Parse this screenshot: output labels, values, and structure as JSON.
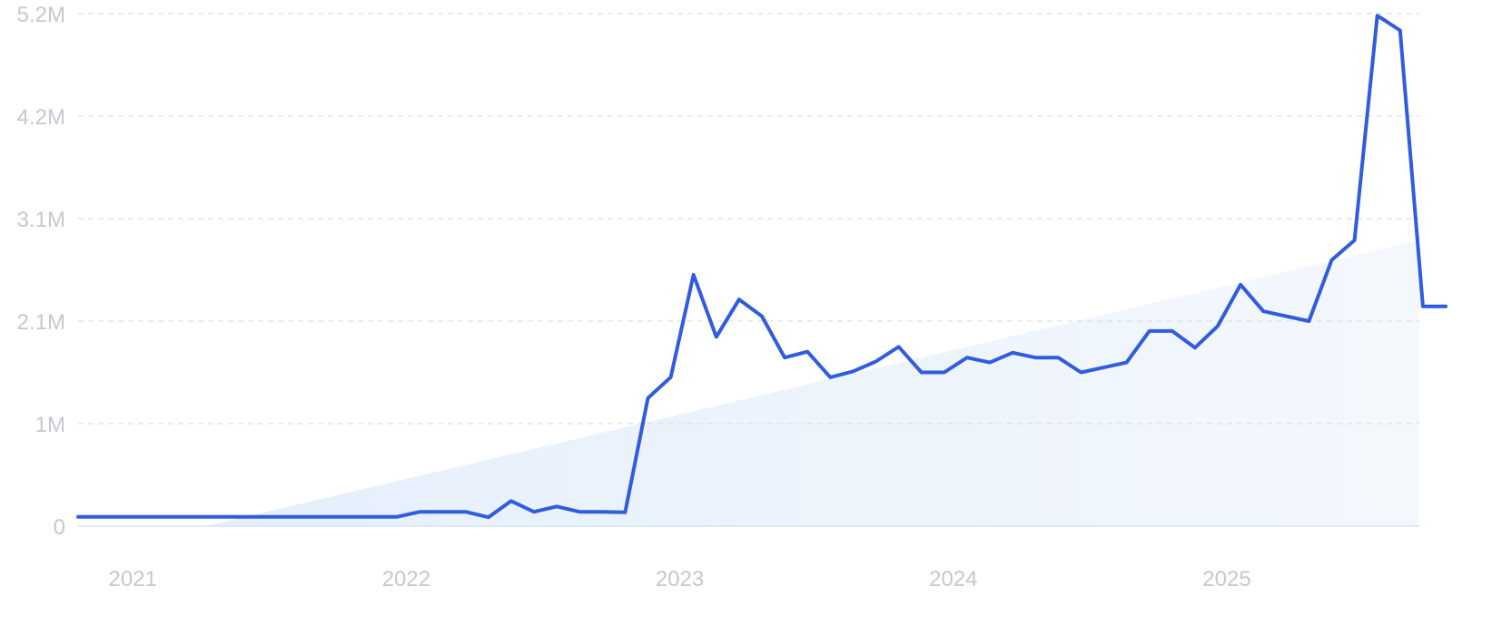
{
  "chart_data": {
    "type": "line",
    "title": "",
    "xlabel": "",
    "ylabel": "",
    "y_ticks": [
      "0",
      "1M",
      "2.1M",
      "3.1M",
      "4.2M",
      "5.2M"
    ],
    "y_tick_values": [
      0,
      1040000,
      2080000,
      3120000,
      4160000,
      5200000
    ],
    "ylim": [
      0,
      5200000
    ],
    "x_ticks": [
      "2021",
      "2022",
      "2023",
      "2024",
      "2025"
    ],
    "x_tick_dates": [
      "2021-01",
      "2022-01",
      "2023-01",
      "2024-01",
      "2025-01"
    ],
    "grid": true,
    "legend": "none",
    "colors": {
      "line": "#2f5ce0",
      "trend_fill": "#e8f1fb",
      "grid": "#dcdfe4",
      "tick_text": "#c4c8d0"
    },
    "series": [
      {
        "x": [
          "2020-11",
          "2020-12",
          "2021-01",
          "2021-02",
          "2021-03",
          "2021-04",
          "2021-05",
          "2021-06",
          "2021-07",
          "2021-08",
          "2021-09",
          "2021-10",
          "2021-11",
          "2021-12",
          "2022-01",
          "2022-02",
          "2022-03",
          "2022-04",
          "2022-05",
          "2022-06",
          "2022-07",
          "2022-08",
          "2022-09",
          "2022-10",
          "2022-11",
          "2022-12",
          "2023-01",
          "2023-02",
          "2023-03",
          "2023-04",
          "2023-05",
          "2023-06",
          "2023-07",
          "2023-08",
          "2023-09",
          "2023-10",
          "2023-11",
          "2023-12",
          "2024-01",
          "2024-02",
          "2024-03",
          "2024-04",
          "2024-05",
          "2024-06",
          "2024-07",
          "2024-08",
          "2024-09",
          "2024-10",
          "2024-11",
          "2024-12",
          "2025-01",
          "2025-02",
          "2025-03",
          "2025-04",
          "2025-05",
          "2025-06",
          "2025-07",
          "2025-08",
          "2025-09",
          "2025-10",
          "2025-11"
        ],
        "values": [
          95000,
          95000,
          95000,
          95000,
          95000,
          95000,
          95000,
          95000,
          95000,
          95000,
          95000,
          95000,
          95000,
          95000,
          95000,
          145000,
          145000,
          145000,
          90000,
          255000,
          145000,
          200000,
          145000,
          145000,
          140000,
          1300000,
          1510000,
          2550000,
          1920000,
          2300000,
          2130000,
          1710000,
          1770000,
          1510000,
          1570000,
          1670000,
          1820000,
          1560000,
          1560000,
          1710000,
          1660000,
          1760000,
          1710000,
          1710000,
          1560000,
          1610000,
          1660000,
          1980000,
          1980000,
          1810000,
          2030000,
          2450000,
          2180000,
          2130000,
          2080000,
          2700000,
          2900000,
          5180000,
          5030000,
          2230000,
          2230000
        ]
      }
    ],
    "trend": {
      "start": [
        "2021-07",
        0
      ],
      "end": [
        "2025-11",
        2900000
      ]
    }
  }
}
